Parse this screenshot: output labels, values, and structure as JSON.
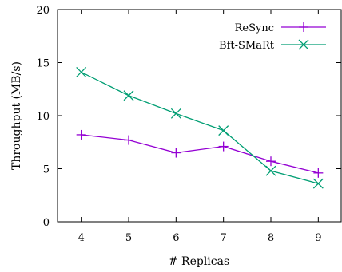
{
  "chart_data": {
    "type": "line",
    "title": "",
    "xlabel": "# Replicas",
    "ylabel": "Throughput (MB/s)",
    "x": [
      4,
      5,
      6,
      7,
      8,
      9
    ],
    "xlim": [
      3.5,
      9.5
    ],
    "ylim": [
      0,
      20
    ],
    "xticks": [
      4,
      5,
      6,
      7,
      8,
      9
    ],
    "yticks": [
      0,
      5,
      10,
      15,
      20
    ],
    "grid": false,
    "legend_position": "top-right",
    "series": [
      {
        "name": "ReSync",
        "values": [
          8.2,
          7.7,
          6.5,
          7.1,
          5.7,
          4.6
        ],
        "color": "#9400D3",
        "marker": "plus"
      },
      {
        "name": "Bft-SMaRt",
        "values": [
          14.1,
          11.9,
          10.2,
          8.6,
          4.8,
          3.6
        ],
        "color": "#009E73",
        "marker": "cross"
      }
    ]
  }
}
